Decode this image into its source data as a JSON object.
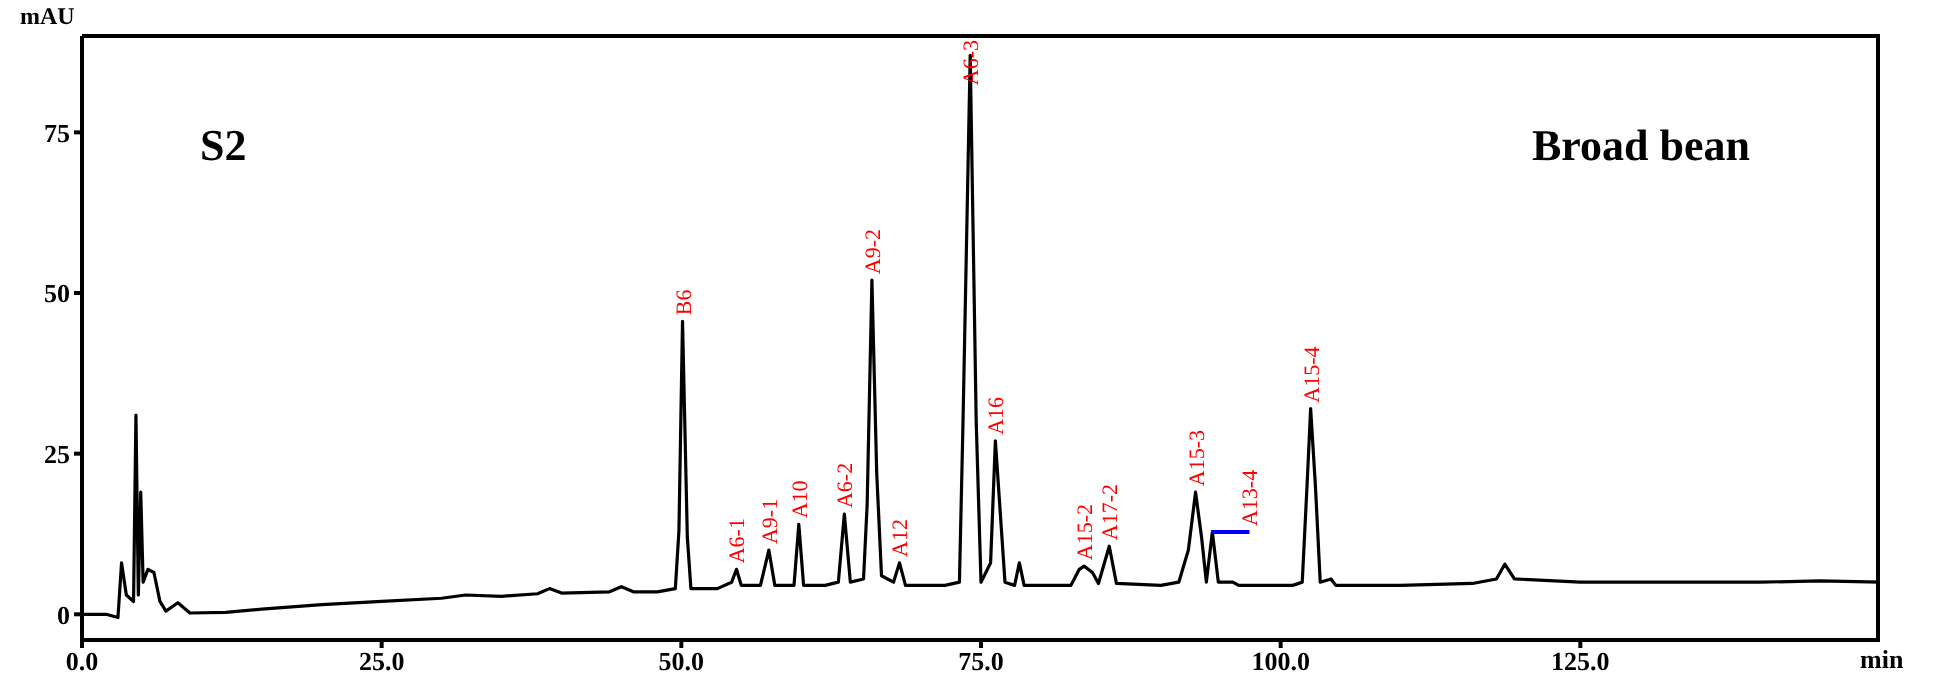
{
  "chart_data": {
    "type": "line",
    "ylabel": "mAU",
    "xlabel": "min",
    "xlim": [
      0,
      150
    ],
    "ylim": [
      -4,
      90
    ],
    "xticks": [
      {
        "value": 0,
        "label": "0.0"
      },
      {
        "value": 25,
        "label": "25.0"
      },
      {
        "value": 50,
        "label": "50.0"
      },
      {
        "value": 75,
        "label": "75.0"
      },
      {
        "value": 100,
        "label": "100.0"
      },
      {
        "value": 125,
        "label": "125.0"
      }
    ],
    "yticks": [
      0,
      25,
      50,
      75
    ],
    "marker": "none",
    "line_style": "solid",
    "series": [
      {
        "color": "#000000",
        "x": [
          0,
          2,
          3,
          3.3,
          3.7,
          4.3,
          4.5,
          4.7,
          4.9,
          5.1,
          5.5,
          6,
          6.5,
          7,
          8,
          9,
          12,
          15,
          20,
          25,
          30,
          32,
          35,
          38,
          39,
          40,
          44,
          45,
          46,
          48,
          49.5,
          49.8,
          50.1,
          50.5,
          50.8,
          53,
          54.2,
          54.6,
          55,
          56.6,
          57.3,
          57.8,
          59.4,
          59.8,
          60.2,
          62,
          63.1,
          63.6,
          64.1,
          65.2,
          65.5,
          65.9,
          66.3,
          66.7,
          67.7,
          68.2,
          68.7,
          72,
          73.2,
          73.5,
          74.1,
          74.6,
          75,
          75.8,
          76.2,
          76.6,
          77,
          77.8,
          78.2,
          78.6,
          82.5,
          83.2,
          83.6,
          84.3,
          84.8,
          85.7,
          86.3,
          90,
          91.5,
          92.3,
          92.9,
          93.4,
          93.8,
          94.3,
          94.8,
          96,
          96.5,
          101,
          101.8,
          102.2,
          102.5,
          102.9,
          103.3,
          104.2,
          104.6,
          110,
          116,
          118,
          118.7,
          119.5,
          125,
          135,
          140,
          145,
          150
        ],
        "values": [
          0,
          0,
          -0.5,
          8,
          3,
          2,
          31,
          3,
          19,
          5,
          7,
          6.5,
          2,
          0.5,
          1.8,
          0.2,
          0.3,
          0.8,
          1.5,
          2,
          2.5,
          3,
          2.8,
          3.2,
          4,
          3.3,
          3.5,
          4.3,
          3.5,
          3.5,
          4,
          13,
          45.6,
          12,
          4,
          4,
          5,
          7,
          4.5,
          4.5,
          10,
          4.5,
          4.5,
          14,
          4.5,
          4.5,
          5,
          15.6,
          5,
          5.5,
          17,
          52,
          22,
          6,
          5,
          8,
          4.5,
          4.5,
          5,
          30,
          87,
          30,
          5,
          8,
          27,
          16,
          5,
          4.5,
          8,
          4.5,
          4.5,
          7,
          7.5,
          6.5,
          4.8,
          10.6,
          4.8,
          4.5,
          5,
          10,
          19,
          12,
          5,
          12.8,
          5,
          5,
          4.5,
          4.5,
          5,
          20,
          32,
          20,
          5,
          5.5,
          4.5,
          4.5,
          4.8,
          5.5,
          7.8,
          5.5,
          5,
          5,
          5,
          5.2,
          5
        ]
      },
      {
        "color": "#0000ff",
        "x": [
          94.2,
          97.4
        ],
        "values": [
          12.8,
          12.8
        ]
      }
    ],
    "annotations": [
      "S2",
      "Broad bean",
      {
        "text": "B6",
        "x": 50.1,
        "y": 45.6
      },
      {
        "text": "A6-1",
        "x": 54.6,
        "y": 7
      },
      {
        "text": "A9-1",
        "x": 57.3,
        "y": 10
      },
      {
        "text": "A10",
        "x": 59.8,
        "y": 14
      },
      {
        "text": "A6-2",
        "x": 63.6,
        "y": 15.6
      },
      {
        "text": "A9-2",
        "x": 65.9,
        "y": 52
      },
      {
        "text": "A12",
        "x": 68.2,
        "y": 8
      },
      {
        "text": "A6-3",
        "x": 74.1,
        "y": 87
      },
      {
        "text": "A16",
        "x": 76.2,
        "y": 27
      },
      {
        "text": "A15-2",
        "x": 83.6,
        "y": 7.5
      },
      {
        "text": "A17-2",
        "x": 85.7,
        "y": 10.6
      },
      {
        "text": "A15-3",
        "x": 92.9,
        "y": 19
      },
      {
        "text": "A13-4",
        "x": 97.4,
        "y": 12.8
      },
      {
        "text": "A15-4",
        "x": 102.5,
        "y": 32
      }
    ]
  }
}
